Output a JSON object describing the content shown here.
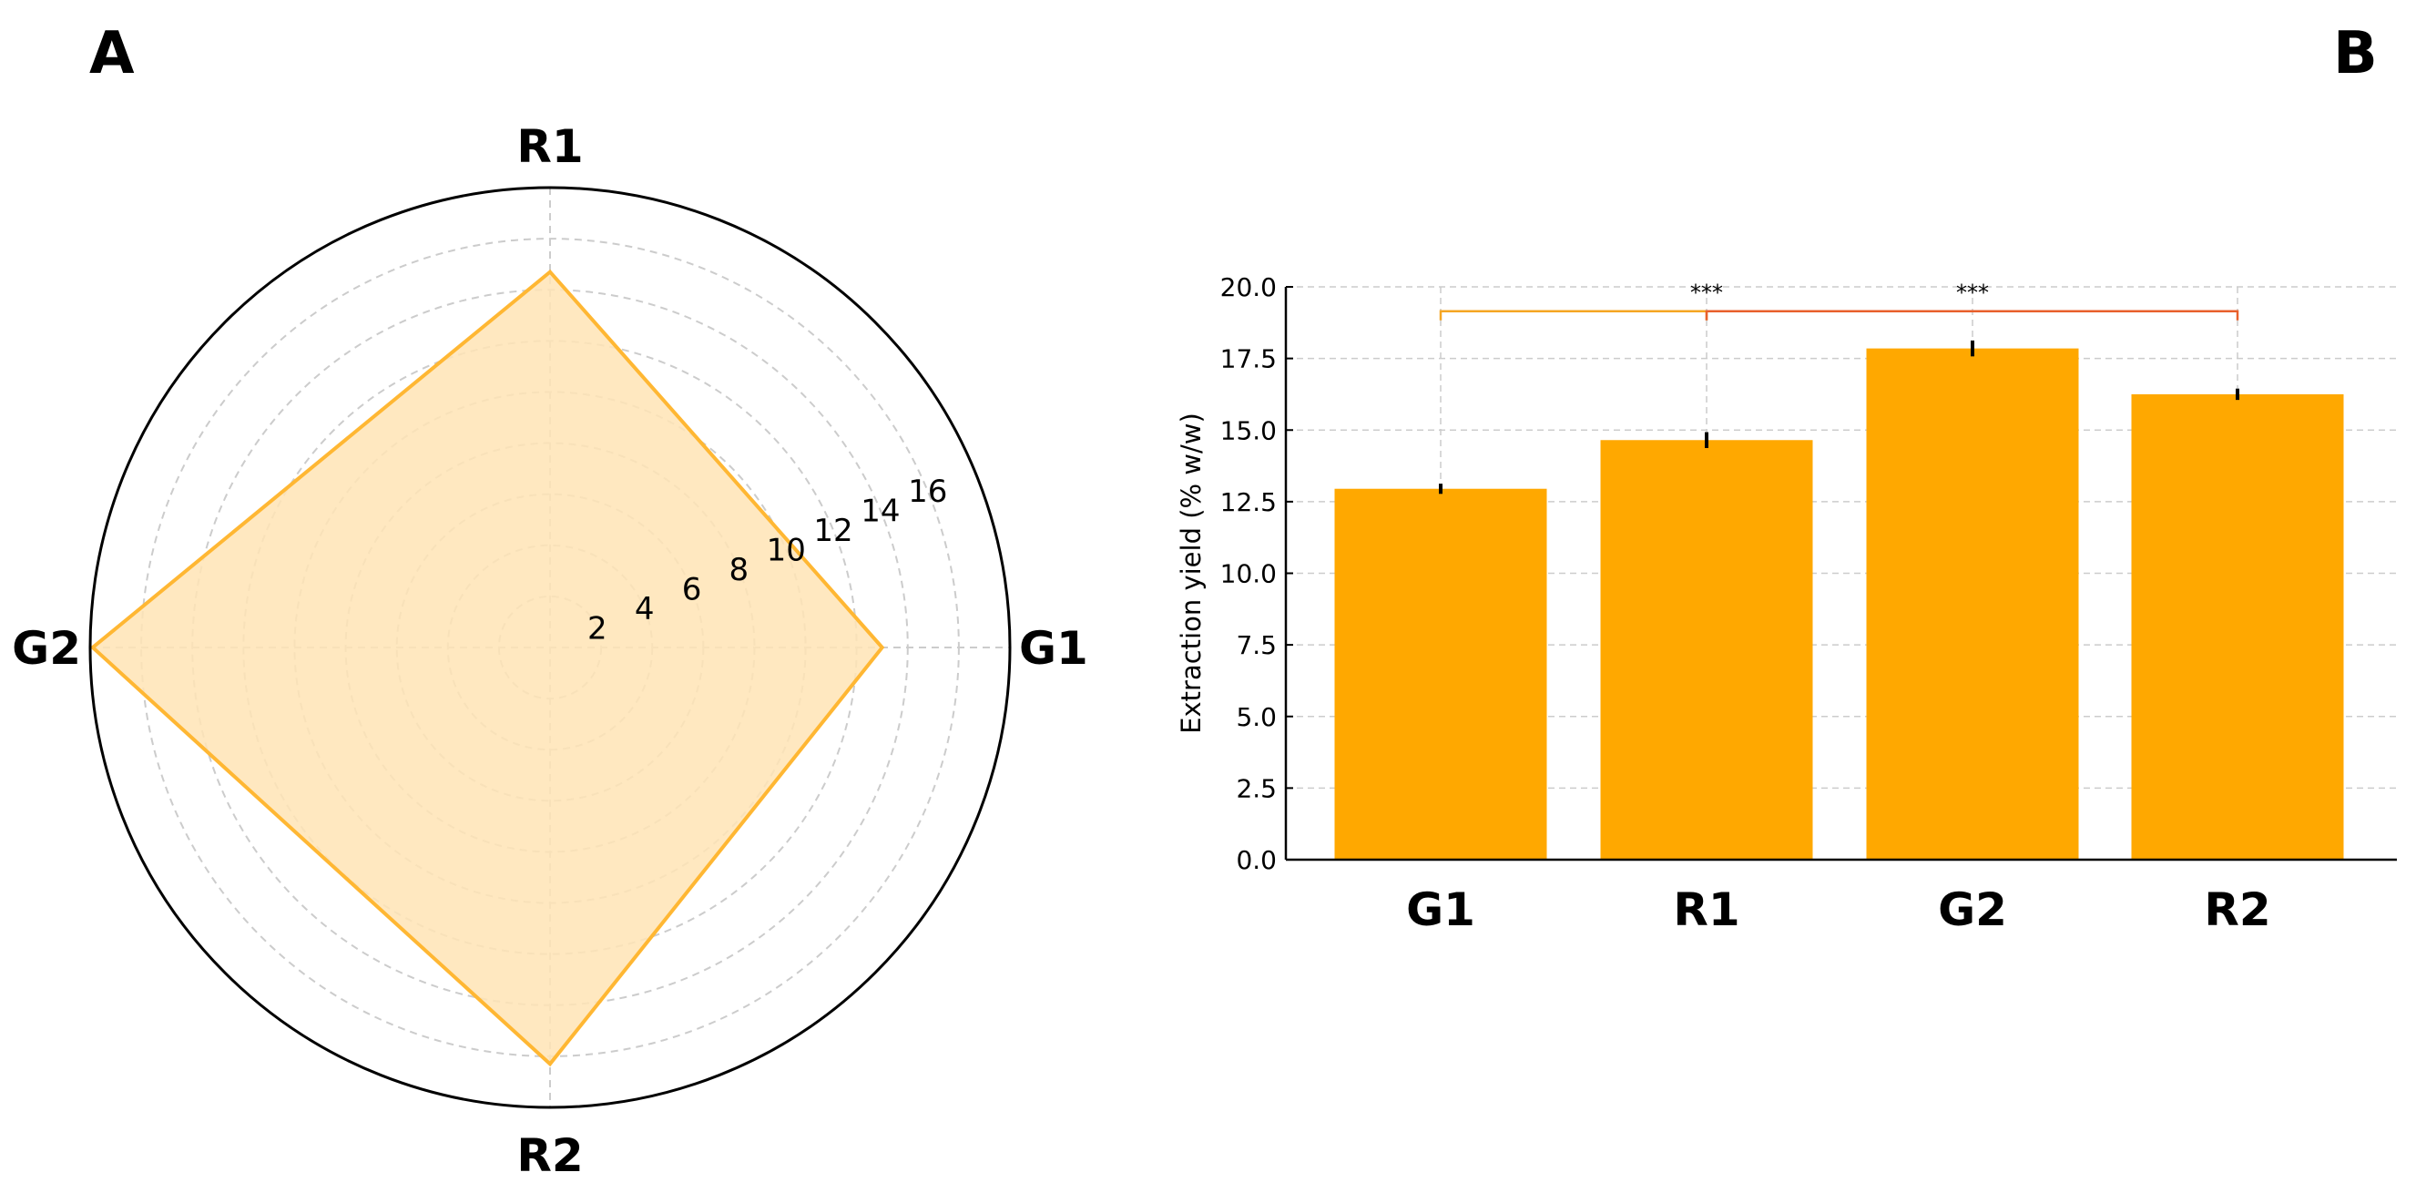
{
  "panels": {
    "a_label": "A",
    "b_label": "B"
  },
  "colors": {
    "bar": "#FFA800",
    "radar_fill": "#FFE4B5",
    "radar_line": "#FFB733",
    "bracket_1": "#F5A623",
    "bracket_2": "#E8602C",
    "grid": "#cccccc",
    "error_bar": "#000000"
  },
  "chart_data": [
    {
      "type": "radar",
      "categories": [
        "G1",
        "R1",
        "G2",
        "R2"
      ],
      "values": [
        13.0,
        14.7,
        17.9,
        16.3
      ],
      "radial_ticks": [
        "2",
        "4",
        "6",
        "8",
        "10",
        "12",
        "14",
        "16"
      ],
      "rlim": [
        0,
        18
      ],
      "grid": true
    },
    {
      "type": "bar",
      "categories": [
        "G1",
        "R1",
        "G2",
        "R2"
      ],
      "values": [
        12.95,
        14.65,
        17.85,
        16.25
      ],
      "errors": [
        0.05,
        0.15,
        0.15,
        0.07
      ],
      "ylabel": "Extraction yield (% w/w)",
      "ylim": [
        0,
        20
      ],
      "yticks": [
        "0.0",
        "2.5",
        "5.0",
        "7.5",
        "10.0",
        "12.5",
        "15.0",
        "17.5",
        "20.0"
      ],
      "grid": true,
      "significance": [
        {
          "from": "G1",
          "to": "R1",
          "label": "***"
        },
        {
          "from": "R1",
          "to": "R2",
          "label": "***"
        }
      ],
      "significance_level": 19.15
    }
  ]
}
